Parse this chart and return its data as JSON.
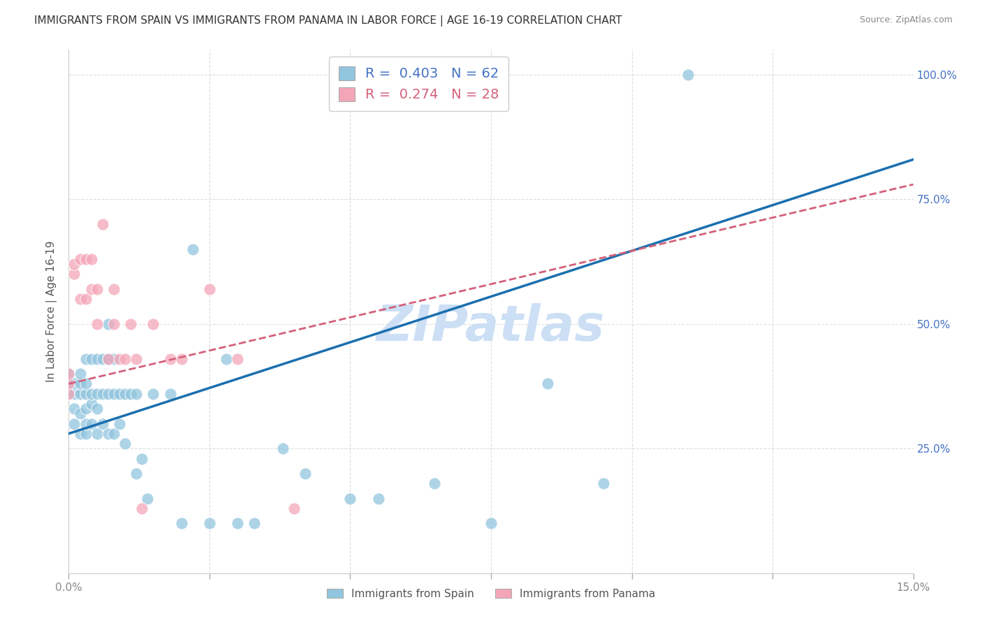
{
  "title": "IMMIGRANTS FROM SPAIN VS IMMIGRANTS FROM PANAMA IN LABOR FORCE | AGE 16-19 CORRELATION CHART",
  "source": "Source: ZipAtlas.com",
  "ylabel": "In Labor Force | Age 16-19",
  "xmin": 0.0,
  "xmax": 0.15,
  "ymin": 0.0,
  "ymax": 1.05,
  "R_spain": 0.403,
  "N_spain": 62,
  "R_panama": 0.274,
  "N_panama": 28,
  "color_spain": "#92c5de",
  "color_panama": "#f4a6b8",
  "color_trendline_spain": "#1a6faf",
  "color_trendline_panama": "#d4607a",
  "spain_x": [
    0.0,
    0.0,
    0.0,
    0.001,
    0.001,
    0.001,
    0.001,
    0.002,
    0.002,
    0.002,
    0.002,
    0.002,
    0.003,
    0.003,
    0.003,
    0.003,
    0.003,
    0.003,
    0.004,
    0.004,
    0.004,
    0.004,
    0.005,
    0.005,
    0.005,
    0.005,
    0.006,
    0.006,
    0.006,
    0.007,
    0.007,
    0.007,
    0.007,
    0.008,
    0.008,
    0.008,
    0.009,
    0.009,
    0.01,
    0.01,
    0.011,
    0.012,
    0.012,
    0.013,
    0.014,
    0.015,
    0.018,
    0.02,
    0.022,
    0.025,
    0.028,
    0.03,
    0.033,
    0.038,
    0.042,
    0.05,
    0.055,
    0.065,
    0.075,
    0.085,
    0.095,
    0.11
  ],
  "spain_y": [
    0.36,
    0.38,
    0.4,
    0.3,
    0.33,
    0.36,
    0.38,
    0.28,
    0.32,
    0.36,
    0.38,
    0.4,
    0.28,
    0.3,
    0.33,
    0.36,
    0.38,
    0.43,
    0.3,
    0.34,
    0.36,
    0.43,
    0.28,
    0.33,
    0.36,
    0.43,
    0.3,
    0.36,
    0.43,
    0.28,
    0.36,
    0.43,
    0.5,
    0.28,
    0.36,
    0.43,
    0.3,
    0.36,
    0.26,
    0.36,
    0.36,
    0.2,
    0.36,
    0.23,
    0.15,
    0.36,
    0.36,
    0.1,
    0.65,
    0.1,
    0.43,
    0.1,
    0.1,
    0.25,
    0.2,
    0.15,
    0.15,
    0.18,
    0.1,
    0.38,
    0.18,
    1.0
  ],
  "panama_x": [
    0.0,
    0.0,
    0.0,
    0.001,
    0.001,
    0.002,
    0.002,
    0.003,
    0.003,
    0.004,
    0.004,
    0.005,
    0.005,
    0.006,
    0.007,
    0.008,
    0.008,
    0.009,
    0.01,
    0.011,
    0.012,
    0.013,
    0.015,
    0.018,
    0.02,
    0.025,
    0.03,
    0.04
  ],
  "panama_y": [
    0.36,
    0.38,
    0.4,
    0.6,
    0.62,
    0.55,
    0.63,
    0.55,
    0.63,
    0.57,
    0.63,
    0.5,
    0.57,
    0.7,
    0.43,
    0.5,
    0.57,
    0.43,
    0.43,
    0.5,
    0.43,
    0.13,
    0.5,
    0.43,
    0.43,
    0.57,
    0.43,
    0.13
  ],
  "trendline_spain_x0": 0.0,
  "trendline_spain_y0": 0.28,
  "trendline_spain_x1": 0.15,
  "trendline_spain_y1": 0.83,
  "trendline_panama_x0": 0.0,
  "trendline_panama_y0": 0.38,
  "trendline_panama_x1": 0.15,
  "trendline_panama_y1": 0.78,
  "watermark": "ZIPatlas",
  "watermark_color": "#ccdff5",
  "bg_color": "#ffffff",
  "grid_color": "#dddddd"
}
